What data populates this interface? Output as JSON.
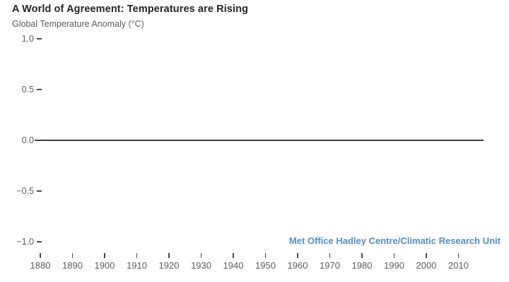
{
  "chart_data": {
    "type": "line",
    "title": "A World of Agreement: Temperatures are Rising",
    "subtitle": "Global Temperature Anomaly (°C)",
    "ylabel": "Global Temperature Anomaly (°C)",
    "xlabel": "",
    "source_credit": "Met Office Hadley Centre/Climatic Research Unit",
    "xlim": [
      1878,
      2019
    ],
    "ylim": [
      -1.0,
      1.0
    ],
    "grid": false,
    "legend": null,
    "y_ticks": [
      {
        "value": 1.0,
        "label": "1.0"
      },
      {
        "value": 0.5,
        "label": "0.5"
      },
      {
        "value": 0.0,
        "label": "0.0"
      },
      {
        "value": -0.5,
        "label": "−0.5"
      },
      {
        "value": -1.0,
        "label": "−1.0"
      }
    ],
    "x_ticks": [
      {
        "value": 1880,
        "label": "1880"
      },
      {
        "value": 1890,
        "label": "1890"
      },
      {
        "value": 1900,
        "label": "1900"
      },
      {
        "value": 1910,
        "label": "1910"
      },
      {
        "value": 1920,
        "label": "1920"
      },
      {
        "value": 1930,
        "label": "1930"
      },
      {
        "value": 1940,
        "label": "1940"
      },
      {
        "value": 1950,
        "label": "1950"
      },
      {
        "value": 1960,
        "label": "1960"
      },
      {
        "value": 1970,
        "label": "1970"
      },
      {
        "value": 1980,
        "label": "1980"
      },
      {
        "value": 1990,
        "label": "1990"
      },
      {
        "value": 2000,
        "label": "2000"
      },
      {
        "value": 2010,
        "label": "2010"
      }
    ],
    "baseline": {
      "value": 0.0
    },
    "series": [],
    "colors": {
      "background": "#ffffff",
      "title_text": "#242424",
      "axis_text": "#5c5c5c",
      "tick": "#4a4a4a",
      "baseline_line": "#3f3f3f",
      "source_credit_text": "#4a90c6"
    }
  }
}
